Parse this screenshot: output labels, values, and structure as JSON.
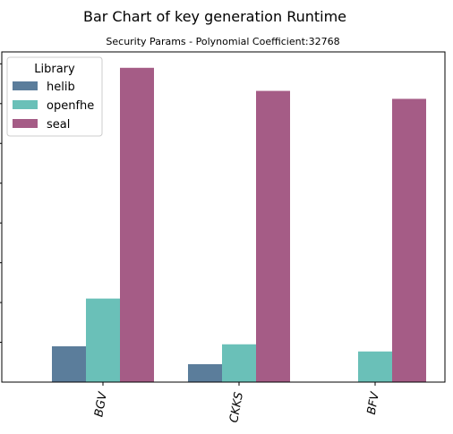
{
  "chart_data": {
    "type": "bar",
    "title": "Bar Chart of key generation  Runtime",
    "subtitle": "Security Params - Polynomial Coefficient:32768",
    "xlabel": "",
    "ylabel": "",
    "categories": [
      "BGV",
      "CKKS",
      "BFV"
    ],
    "series": [
      {
        "name": "helib",
        "color": "#5b7d9b",
        "values": [
          0.9,
          0.45,
          0
        ]
      },
      {
        "name": "openfhe",
        "color": "#6ac0b8",
        "values": [
          2.1,
          0.95,
          0.77
        ]
      },
      {
        "name": "seal",
        "color": "#a55c86",
        "values": [
          7.9,
          7.32,
          7.12
        ]
      }
    ],
    "ylim": [
      0,
      8.3
    ],
    "yticks": [
      1,
      2,
      3,
      4,
      5,
      6,
      7,
      8
    ],
    "legend": {
      "title": "Library",
      "placement": "top-left"
    },
    "grid": false
  }
}
